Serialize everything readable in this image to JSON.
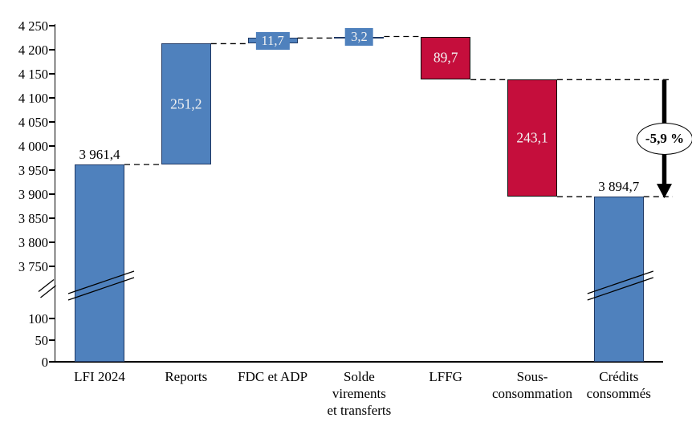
{
  "chart_data": {
    "type": "bar",
    "subtype": "waterfall",
    "title": "",
    "xlabel": "",
    "ylabel": "",
    "background": "#FFFFFF",
    "axis_break": true,
    "y_axis": {
      "top_ticks": [
        {
          "label": "4 250",
          "value": 4250
        },
        {
          "label": "4 200",
          "value": 4200
        },
        {
          "label": "4 150",
          "value": 4150
        },
        {
          "label": "4 100",
          "value": 4100
        },
        {
          "label": "4 050",
          "value": 4050
        },
        {
          "label": "4 000",
          "value": 4000
        },
        {
          "label": "3 950",
          "value": 3950
        },
        {
          "label": "3 900",
          "value": 3900
        },
        {
          "label": "3 850",
          "value": 3850
        },
        {
          "label": "3 800",
          "value": 3800
        },
        {
          "label": "3 750",
          "value": 3750
        }
      ],
      "bottom_ticks": [
        {
          "label": "100",
          "value": 100
        },
        {
          "label": "50",
          "value": 50
        },
        {
          "label": "0",
          "value": 0
        }
      ]
    },
    "categories": [
      "LFI 2024",
      "Reports",
      "FDC et ADP",
      "Solde virements et transferts",
      "LFFG",
      "Sous-consommation",
      "Crédits consommés"
    ],
    "bars": [
      {
        "category_lines": [
          "LFI 2024"
        ],
        "from": 0,
        "to": 3961.4,
        "delta": 3961.4,
        "color_key": "blue",
        "value_label": "3 961,4",
        "label_position": "above",
        "broken": true
      },
      {
        "category_lines": [
          "Reports"
        ],
        "from": 3961.4,
        "to": 4212.6,
        "delta": 251.2,
        "color_key": "blue",
        "value_label": "251,2",
        "label_position": "inside",
        "broken": false
      },
      {
        "category_lines": [
          "FDC et ADP"
        ],
        "from": 4212.6,
        "to": 4224.3,
        "delta": 11.7,
        "color_key": "blue",
        "value_label": "11,7",
        "label_position": "chip",
        "broken": false
      },
      {
        "category_lines": [
          "Solde",
          "virements",
          "et transferts"
        ],
        "from": 4224.3,
        "to": 4227.5,
        "delta": 3.2,
        "color_key": "blue",
        "value_label": "3,2",
        "label_position": "chip",
        "broken": false
      },
      {
        "category_lines": [
          "LFFG"
        ],
        "from": 4227.5,
        "to": 4137.8,
        "delta": -89.7,
        "color_key": "red",
        "value_label": "89,7",
        "label_position": "inside",
        "broken": false
      },
      {
        "category_lines": [
          "Sous-",
          "consommation"
        ],
        "from": 4137.8,
        "to": 3894.7,
        "delta": -243.1,
        "color_key": "red",
        "value_label": "243,1",
        "label_position": "inside",
        "broken": false
      },
      {
        "category_lines": [
          "Crédits",
          "consommés"
        ],
        "from": 0,
        "to": 3894.7,
        "delta": 3894.7,
        "color_key": "blue",
        "value_label": "3 894,7",
        "label_position": "above",
        "broken": true
      }
    ],
    "annotation": {
      "text": "-5,9 %",
      "from_value": 4137.8,
      "to_value": 3894.7
    },
    "colors": {
      "blue": "#4F81BD",
      "blue_border": "#1F3864",
      "red": "#C50E3C",
      "red_border": "#0A0A0A",
      "inside_label_text": "#F2F2F2",
      "axis": "#000000",
      "connector": "#000000",
      "annotation_fill": "#FFFFFF",
      "annotation_border": "#000000"
    },
    "legend": null,
    "grid": false
  }
}
